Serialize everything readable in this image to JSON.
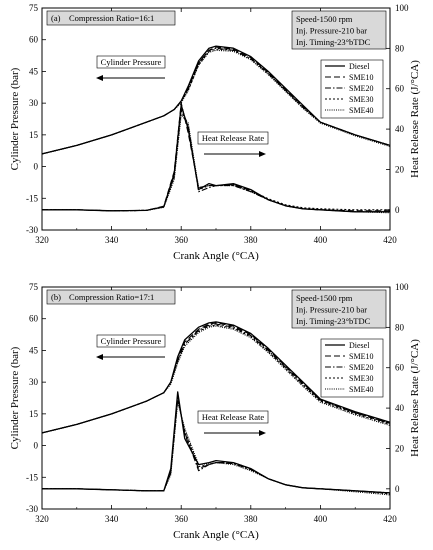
{
  "chart_data": [
    {
      "type": "line",
      "panel_label": "(a)",
      "ratio_label": "Compression Ratio=16:1",
      "conditions": [
        "Speed-1500 rpm",
        "Inj. Pressure-210 bar",
        "Inj. Timing-23°bTDC"
      ],
      "annotations": [
        "Cylinder Pressure",
        "Heat Release Rate"
      ],
      "xlabel": "Crank Angle (°CA)",
      "ylabel_left": "Cylinder Pressure (bar)",
      "ylabel_right": "Heat Release Rate (J/°CA)",
      "xlim": [
        320,
        420
      ],
      "ylim_left": [
        -30,
        75
      ],
      "ylim_right": [
        -10,
        100
      ],
      "xticks": [
        "320",
        "340",
        "360",
        "380",
        "400",
        "420"
      ],
      "yticks_left": [
        "-30",
        "-15",
        "0",
        "15",
        "30",
        "45",
        "60",
        "75"
      ],
      "yticks_right": [
        "0",
        "20",
        "40",
        "60",
        "80",
        "100"
      ],
      "legend": [
        "Diesel",
        "SME10",
        "SME20",
        "SME30",
        "SME40"
      ],
      "legend_position": "right",
      "x": [
        320,
        330,
        340,
        350,
        355,
        358,
        360,
        362,
        365,
        368,
        370,
        375,
        380,
        385,
        390,
        395,
        400,
        410,
        420
      ],
      "series": [
        {
          "name": "Diesel",
          "pressure": [
            6,
            10,
            15,
            21,
            24,
            27,
            31,
            38,
            50,
            56,
            57,
            56,
            52,
            45,
            37,
            29,
            21,
            15,
            10
          ],
          "hrr": [
            0,
            0,
            -0.5,
            -0.3,
            1.5,
            18,
            52,
            40,
            10,
            13,
            12,
            13,
            10,
            5,
            2,
            0.5,
            0,
            -1,
            -1
          ]
        },
        {
          "name": "SME10",
          "pressure": [
            6,
            10,
            15,
            21,
            24,
            27,
            31,
            37,
            49,
            55,
            56.5,
            55.5,
            51.5,
            44.5,
            36.5,
            28.5,
            21,
            15,
            10
          ],
          "hrr": [
            0,
            0,
            -0.5,
            -0.3,
            1.8,
            19,
            53,
            38,
            11,
            12,
            12,
            12.5,
            9.5,
            5,
            2,
            0.5,
            0,
            -0.5,
            -0.5
          ]
        },
        {
          "name": "SME20",
          "pressure": [
            6,
            10,
            15,
            21,
            24,
            27,
            31,
            37,
            49,
            55,
            56,
            55,
            51,
            44,
            36,
            28,
            21,
            15,
            10
          ],
          "hrr": [
            0,
            0,
            -0.5,
            -0.3,
            1.6,
            17,
            50,
            42,
            9,
            11,
            12,
            12,
            9,
            5,
            2,
            0.5,
            0,
            -1,
            -1
          ]
        },
        {
          "name": "SME30",
          "pressure": [
            6,
            10,
            15,
            21,
            24,
            27,
            31,
            36,
            48,
            54.5,
            55.5,
            55,
            51,
            44,
            36,
            28,
            21,
            15,
            10
          ],
          "hrr": [
            0,
            0,
            -0.5,
            -0.3,
            1.4,
            16,
            49,
            41,
            10,
            12,
            12,
            12.5,
            9.5,
            5.5,
            2.5,
            1,
            0.5,
            0,
            0
          ]
        },
        {
          "name": "SME40",
          "pressure": [
            6,
            10,
            15,
            21,
            24,
            27,
            30,
            36,
            48,
            54,
            55,
            54.5,
            50.5,
            43.5,
            35.5,
            27.5,
            20.5,
            14.5,
            9.5
          ],
          "hrr": [
            0,
            0,
            -0.5,
            -0.3,
            1.2,
            15,
            47,
            43,
            11,
            12,
            12,
            12,
            9,
            5,
            2,
            0.5,
            0,
            -1,
            -1.5
          ]
        }
      ]
    },
    {
      "type": "line",
      "panel_label": "(b)",
      "ratio_label": "Compression Ratio=17:1",
      "conditions": [
        "Speed-1500 rpm",
        "Inj. Pressure-210 bar",
        "Inj. Timing-23°bTDC"
      ],
      "annotations": [
        "Cylinder Pressure",
        "Heat Release Rate"
      ],
      "xlabel": "Crank Angle (°CA)",
      "ylabel_left": "Cylinder Pressure (bar)",
      "ylabel_right": "Heat Release Rate (J/°CA)",
      "xlim": [
        320,
        420
      ],
      "ylim_left": [
        -30,
        75
      ],
      "ylim_right": [
        -10,
        100
      ],
      "xticks": [
        "320",
        "340",
        "360",
        "380",
        "400",
        "420"
      ],
      "yticks_left": [
        "-30",
        "-15",
        "0",
        "15",
        "30",
        "45",
        "60",
        "75"
      ],
      "yticks_right": [
        "0",
        "20",
        "40",
        "60",
        "80",
        "100"
      ],
      "legend": [
        "Diesel",
        "SME10",
        "SME20",
        "SME30",
        "SME40"
      ],
      "legend_position": "right",
      "x": [
        320,
        330,
        340,
        350,
        355,
        357,
        359,
        361,
        365,
        368,
        370,
        375,
        380,
        385,
        390,
        395,
        400,
        410,
        420
      ],
      "series": [
        {
          "name": "Diesel",
          "pressure": [
            6,
            10,
            15,
            21,
            25,
            30,
            42,
            50,
            56,
            58,
            58.5,
            57,
            53,
            46,
            38,
            30,
            22,
            16,
            11
          ],
          "hrr": [
            0,
            0,
            -0.5,
            -1,
            -1,
            10,
            48,
            25,
            12,
            13,
            14,
            13,
            10,
            5,
            2,
            0.5,
            0,
            -1,
            -2
          ]
        },
        {
          "name": "SME10",
          "pressure": [
            6,
            10,
            15,
            21,
            25,
            30,
            41,
            49,
            55,
            57.5,
            58,
            56.5,
            52.5,
            45.5,
            37.5,
            29.5,
            21.5,
            15.5,
            10.5
          ],
          "hrr": [
            0,
            0,
            -0.5,
            -1,
            -1,
            9,
            46,
            27,
            10,
            12,
            13,
            13,
            10,
            5,
            2,
            0.5,
            0,
            -1,
            -2
          ]
        },
        {
          "name": "SME20",
          "pressure": [
            6,
            10,
            15,
            21,
            25,
            30,
            40,
            48,
            54.5,
            57,
            57.5,
            56,
            52,
            45,
            37,
            29,
            21.5,
            15.5,
            10.5
          ],
          "hrr": [
            0,
            0,
            -0.5,
            -1,
            -1,
            8,
            45,
            28,
            9,
            12,
            13,
            12.5,
            9.5,
            5,
            2,
            0.5,
            0,
            -1,
            -2
          ]
        },
        {
          "name": "SME30",
          "pressure": [
            6,
            10,
            15,
            21,
            25,
            30,
            40,
            48,
            54,
            56.5,
            57,
            55.5,
            51.5,
            44.5,
            36.5,
            28.5,
            21,
            15,
            10
          ],
          "hrr": [
            0,
            0,
            -0.5,
            -1,
            -1,
            8,
            44,
            29,
            11,
            12,
            13,
            12.5,
            9.5,
            5,
            2,
            0.5,
            0,
            -1,
            -2.5
          ]
        },
        {
          "name": "SME40",
          "pressure": [
            6,
            10,
            15,
            21,
            25,
            29,
            39,
            47,
            53.5,
            56,
            56.5,
            55,
            51,
            44,
            36,
            28,
            20.5,
            14.5,
            9.5
          ],
          "hrr": [
            0,
            0,
            -0.5,
            -1,
            -1,
            7,
            43,
            30,
            12,
            12.5,
            13,
            12,
            9,
            5,
            2,
            0.5,
            0,
            -1.5,
            -3
          ]
        }
      ]
    }
  ]
}
